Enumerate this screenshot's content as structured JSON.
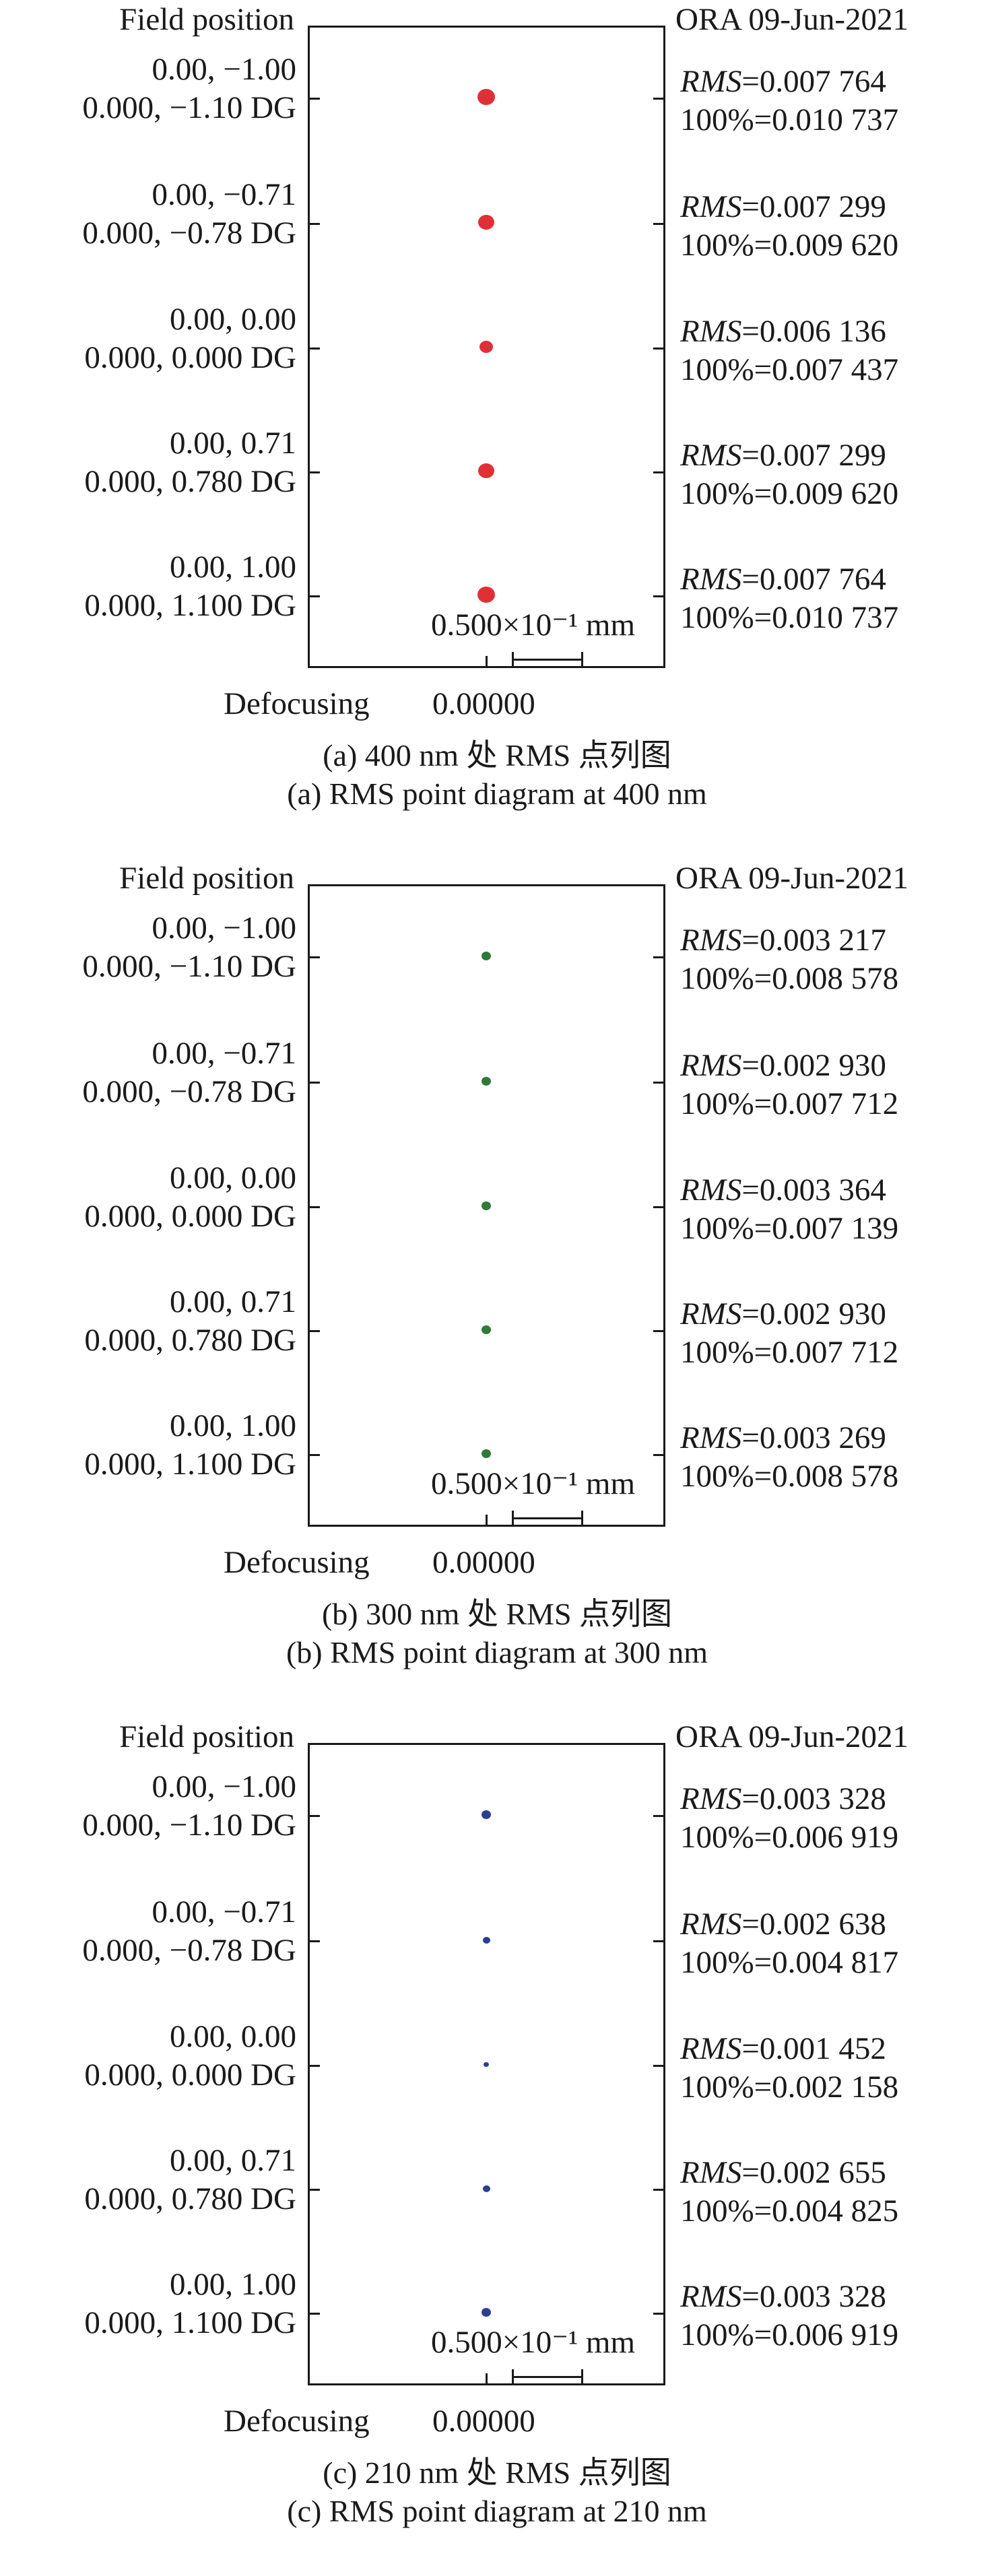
{
  "panels": [
    {
      "field_header": "Field position",
      "date_header": "ORA 09-Jun-2021",
      "color": "#e03036",
      "fields": [
        {
          "line1": "0.00, −1.00",
          "line2": "0.000, −1.10 DG",
          "rms_label": "RMS",
          "rms_value": "=0.007 764",
          "full": "100%=0.010 737",
          "spot_size": 26
        },
        {
          "line1": "0.00, −0.71",
          "line2": "0.000, −0.78 DG",
          "rms_label": "RMS",
          "rms_value": "=0.007 299",
          "full": "100%=0.009 620",
          "spot_size": 24
        },
        {
          "line1": "0.00, 0.00",
          "line2": "0.000, 0.000 DG",
          "rms_label": "RMS",
          "rms_value": "=0.006 136",
          "full": "100%=0.007 437",
          "spot_size": 20
        },
        {
          "line1": "0.00, 0.71",
          "line2": "0.000, 0.780 DG",
          "rms_label": "RMS",
          "rms_value": "=0.007 299",
          "full": "100%=0.009 620",
          "spot_size": 24
        },
        {
          "line1": "0.00, 1.00",
          "line2": "0.000, 1.100 DG",
          "rms_label": "RMS",
          "rms_value": "=0.007 764",
          "full": "100%=0.010 737",
          "spot_size": 26
        }
      ],
      "scale_label": "0.500×10⁻¹ mm",
      "defocusing_label": "Defocusing",
      "defocusing_value": "0.00000",
      "caption_cn": "(a) 400 nm 处 RMS 点列图",
      "caption_en": "(a) RMS point diagram at 400 nm"
    },
    {
      "field_header": "Field position",
      "date_header": "ORA 09-Jun-2021",
      "color": "#2e7a36",
      "fields": [
        {
          "line1": "0.00, −1.00",
          "line2": "0.000, −1.10 DG",
          "rms_label": "RMS",
          "rms_value": "=0.003 217",
          "full": "100%=0.008 578",
          "spot_size": 14
        },
        {
          "line1": "0.00, −0.71",
          "line2": "0.000, −0.78 DG",
          "rms_label": "RMS",
          "rms_value": "=0.002 930",
          "full": "100%=0.007 712",
          "spot_size": 14
        },
        {
          "line1": "0.00, 0.00",
          "line2": "0.000, 0.000 DG",
          "rms_label": "RMS",
          "rms_value": "=0.003 364",
          "full": "100%=0.007 139",
          "spot_size": 14
        },
        {
          "line1": "0.00, 0.71",
          "line2": "0.000, 0.780 DG",
          "rms_label": "RMS",
          "rms_value": "=0.002 930",
          "full": "100%=0.007 712",
          "spot_size": 14
        },
        {
          "line1": "0.00, 1.00",
          "line2": "0.000, 1.100 DG",
          "rms_label": "RMS",
          "rms_value": "=0.003 269",
          "full": "100%=0.008 578",
          "spot_size": 14
        }
      ],
      "scale_label": "0.500×10⁻¹ mm",
      "defocusing_label": "Defocusing",
      "defocusing_value": "0.00000",
      "caption_cn": "(b) 300 nm 处 RMS 点列图",
      "caption_en": "(b) RMS point diagram at 300 nm"
    },
    {
      "field_header": "Field position",
      "date_header": "ORA 09-Jun-2021",
      "color": "#2a3f8f",
      "fields": [
        {
          "line1": "0.00, −1.00",
          "line2": "0.000, −1.10 DG",
          "rms_label": "RMS",
          "rms_value": "=0.003 328",
          "full": "100%=0.006 919",
          "spot_size": 14
        },
        {
          "line1": "0.00, −0.71",
          "line2": "0.000, −0.78 DG",
          "rms_label": "RMS",
          "rms_value": "=0.002 638",
          "full": "100%=0.004 817",
          "spot_size": 11
        },
        {
          "line1": "0.00, 0.00",
          "line2": "0.000, 0.000 DG",
          "rms_label": "RMS",
          "rms_value": "=0.001 452",
          "full": "100%=0.002 158",
          "spot_size": 8
        },
        {
          "line1": "0.00, 0.71",
          "line2": "0.000, 0.780 DG",
          "rms_label": "RMS",
          "rms_value": "=0.002 655",
          "full": "100%=0.004 825",
          "spot_size": 11
        },
        {
          "line1": "0.00, 1.00",
          "line2": "0.000, 1.100 DG",
          "rms_label": "RMS",
          "rms_value": "=0.003 328",
          "full": "100%=0.006 919",
          "spot_size": 14
        }
      ],
      "scale_label": "0.500×10⁻¹ mm",
      "defocusing_label": "Defocusing",
      "defocusing_value": "0.00000",
      "caption_cn": "(c) 210 nm 处 RMS 点列图",
      "caption_en": "(c) RMS point diagram at 210 nm"
    }
  ]
}
